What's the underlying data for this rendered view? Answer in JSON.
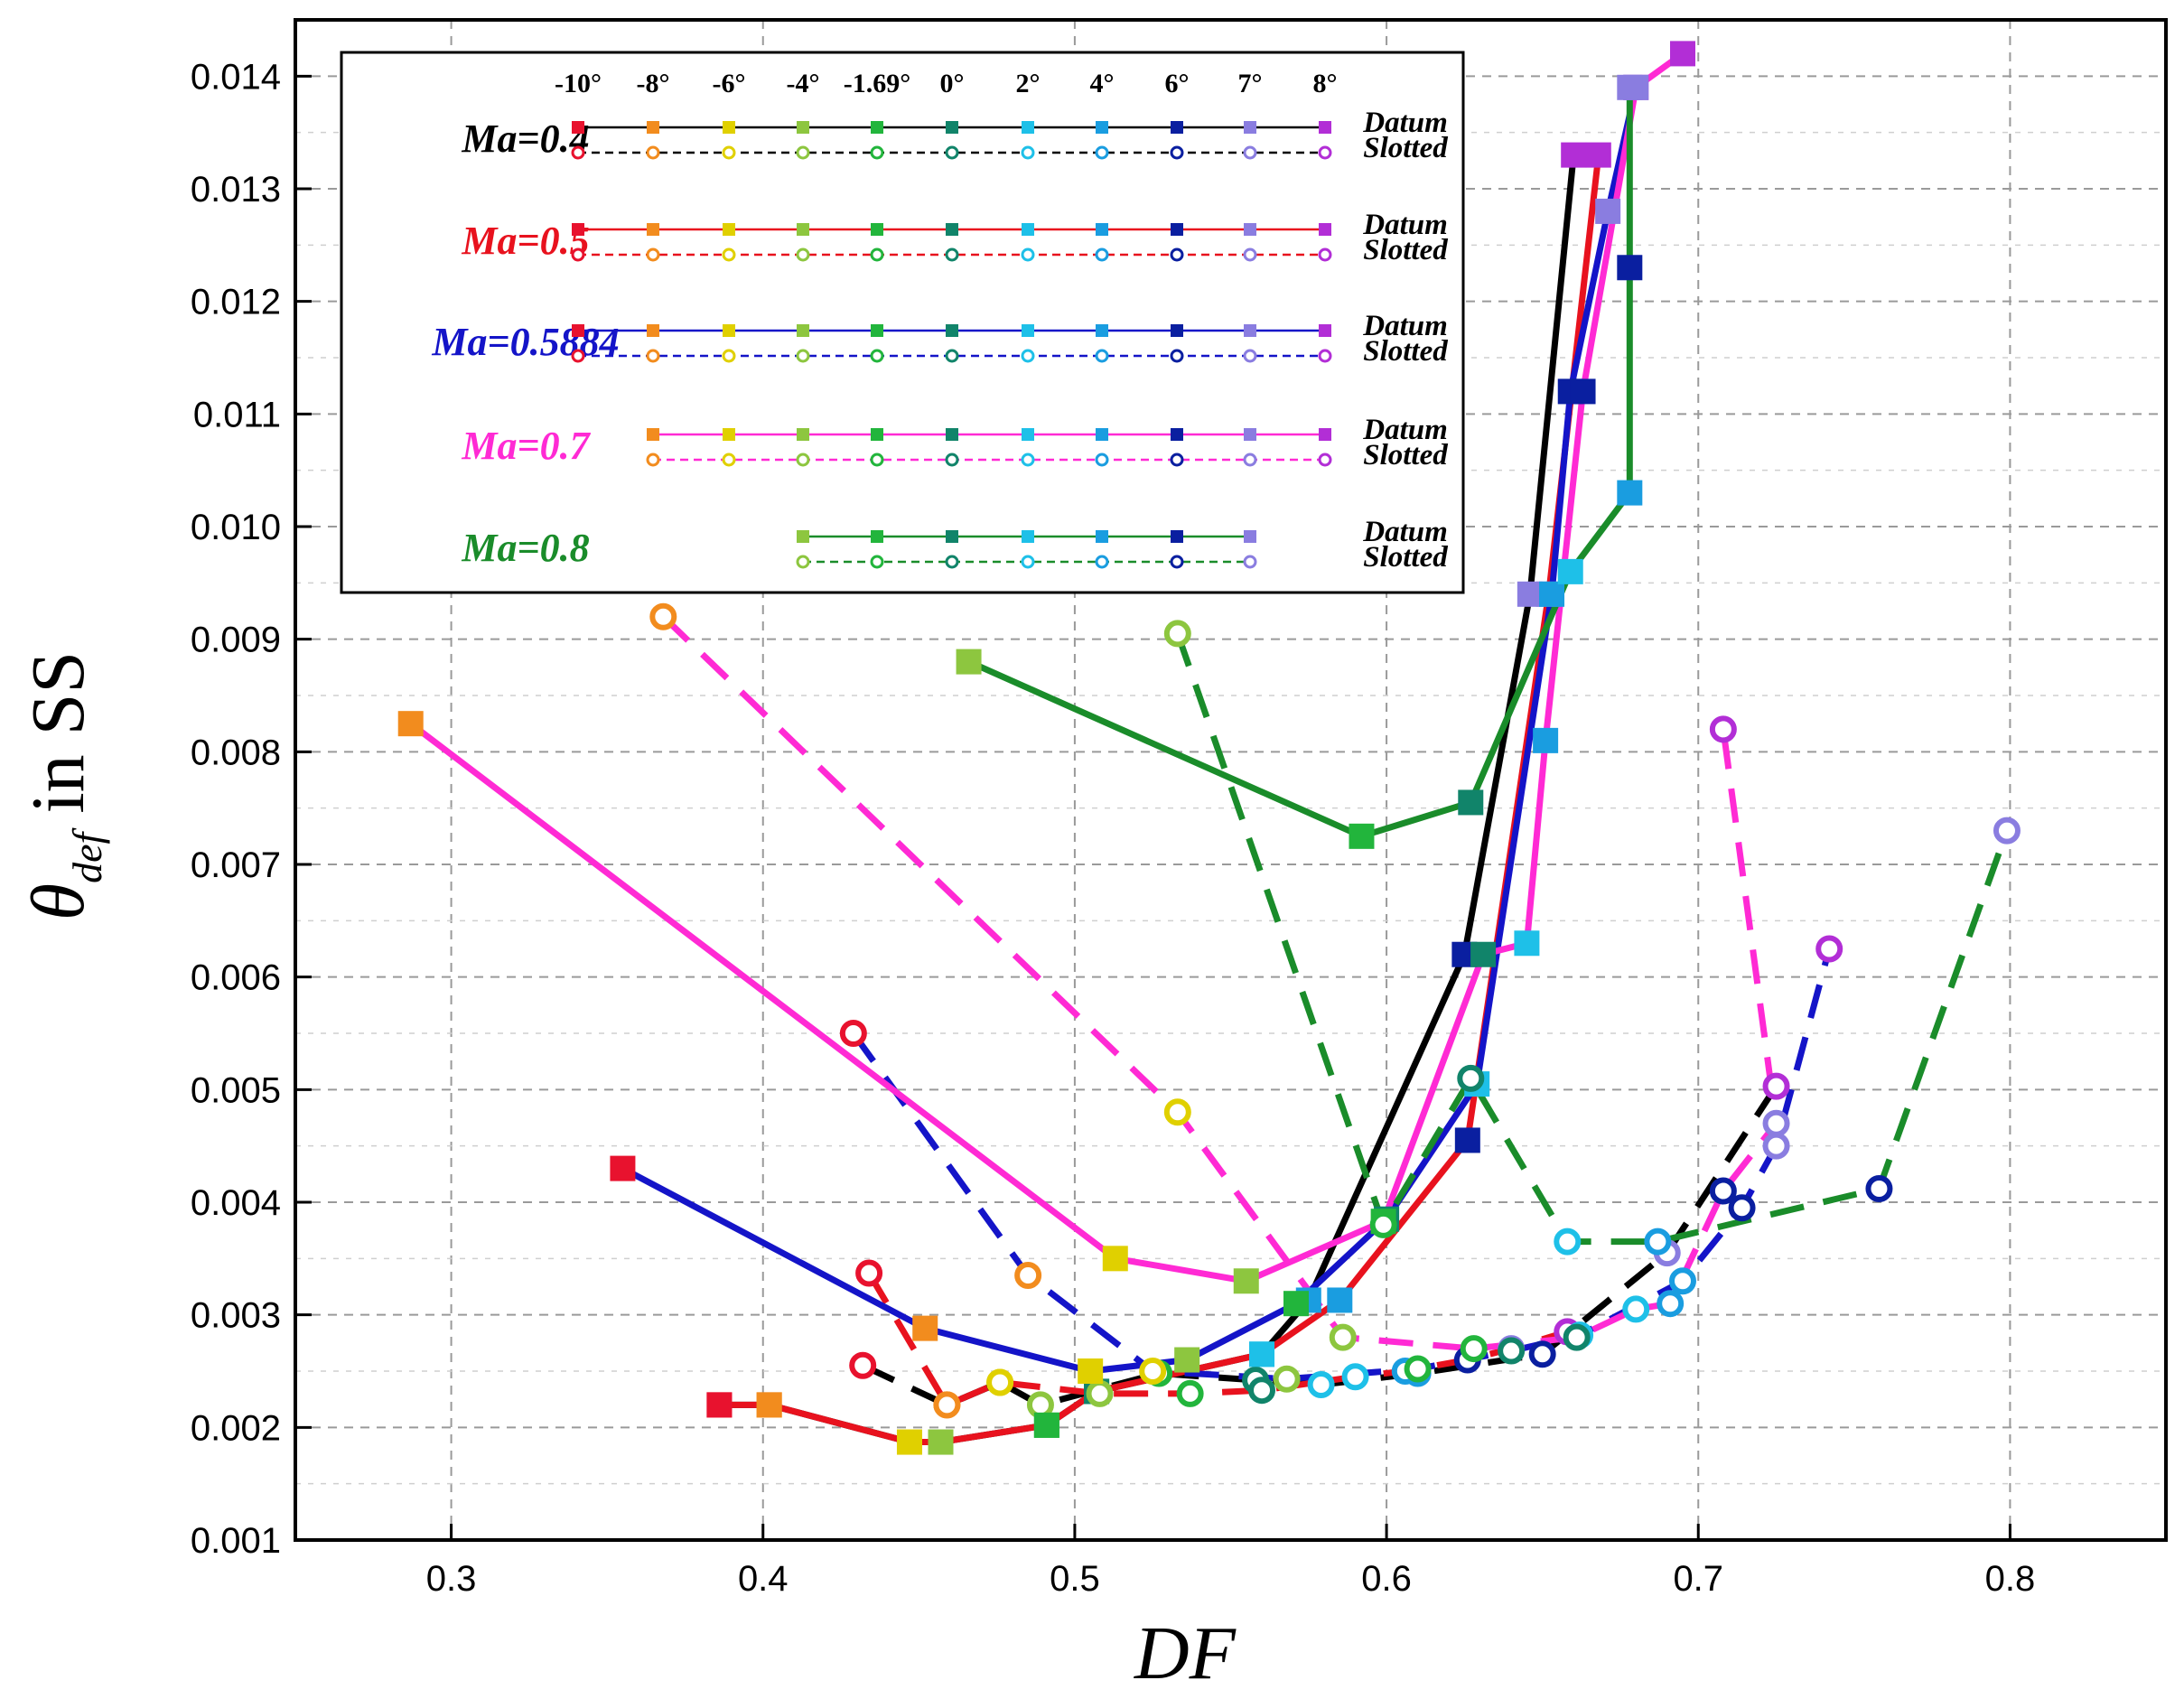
{
  "chart_data": {
    "type": "line",
    "ylabel_symbol": "θ",
    "ylabel_subscript": "def",
    "ylabel_suffix": " in SS",
    "xlabel": "DF",
    "xlim": [
      0.25,
      0.85
    ],
    "ylim": [
      0.001,
      0.0145
    ],
    "x_ticks": [
      0.3,
      0.4,
      0.5,
      0.6,
      0.7,
      0.8
    ],
    "x_tick_labels": [
      "0.3",
      "0.4",
      "0.5",
      "0.6",
      "0.7",
      "0.8"
    ],
    "y_ticks": [
      0.001,
      0.002,
      0.003,
      0.004,
      0.005,
      0.006,
      0.007,
      0.008,
      0.009,
      0.01,
      0.011,
      0.012,
      0.013,
      0.014
    ],
    "y_tick_labels": [
      "0.001",
      "0.002",
      "0.003",
      "0.004",
      "0.005",
      "0.006",
      "0.007",
      "0.008",
      "0.009",
      "0.010",
      "0.011",
      "0.012",
      "0.013",
      "0.014"
    ],
    "grid": true,
    "legend_position": "top-left",
    "angles": [
      "-10°",
      "-8°",
      "-6°",
      "-4°",
      "-1.69°",
      "0°",
      "2°",
      "4°",
      "6°",
      "7°",
      "8°"
    ],
    "angle_colors": [
      "#e8122e",
      "#f28c1e",
      "#e0d000",
      "#8dc63f",
      "#22b53c",
      "#11846a",
      "#1ec0e8",
      "#1a9de0",
      "#0a1fa0",
      "#8a7de0",
      "#b22ed6"
    ],
    "legend_kinds": [
      "Datum",
      "Slotted"
    ],
    "series": [
      {
        "name": "Ma=0.4",
        "color": "#000000",
        "datum": {
          "angle_index": [
            0,
            1,
            2,
            3,
            4,
            5,
            6,
            7,
            8,
            9,
            10
          ],
          "x": [
            0.386,
            0.402,
            0.447,
            0.457,
            0.491,
            0.507,
            0.56,
            0.575,
            0.625,
            0.646,
            0.66
          ],
          "y": [
            0.0022,
            0.0022,
            0.00187,
            0.00187,
            0.00202,
            0.00232,
            0.00265,
            0.00313,
            0.0062,
            0.0094,
            0.0133
          ]
        },
        "slotted": {
          "angle_index": [
            0,
            1,
            2,
            3,
            4,
            5,
            6,
            7,
            8,
            9,
            10
          ],
          "x": [
            0.432,
            0.459,
            0.476,
            0.489,
            0.527,
            0.558,
            0.579,
            0.61,
            0.65,
            0.69,
            0.725
          ],
          "y": [
            0.00255,
            0.0022,
            0.0024,
            0.0022,
            0.00248,
            0.00242,
            0.00238,
            0.00248,
            0.00265,
            0.00355,
            0.00503
          ]
        }
      },
      {
        "name": "Ma=0.5",
        "color": "#e8121e",
        "datum": {
          "angle_index": [
            0,
            1,
            2,
            3,
            4,
            5,
            6,
            7,
            8,
            9,
            10
          ],
          "x": [
            0.386,
            0.402,
            0.447,
            0.457,
            0.491,
            0.507,
            0.56,
            0.585,
            0.626,
            0.652,
            0.668
          ],
          "y": [
            0.0022,
            0.0022,
            0.00187,
            0.00187,
            0.00202,
            0.00232,
            0.00265,
            0.00313,
            0.00455,
            0.0094,
            0.0133
          ]
        },
        "slotted": {
          "angle_index": [
            0,
            1,
            2,
            3,
            4,
            5,
            6,
            7,
            8,
            9,
            10
          ],
          "x": [
            0.434,
            0.459,
            0.476,
            0.508,
            0.537,
            0.56,
            0.59,
            0.606,
            0.626,
            0.64,
            0.658
          ],
          "y": [
            0.00337,
            0.0022,
            0.0024,
            0.0023,
            0.0023,
            0.00233,
            0.00245,
            0.0025,
            0.0026,
            0.0027,
            0.00285
          ]
        }
      },
      {
        "name": "Ma=0.5884",
        "color": "#1414c8",
        "datum": {
          "angle_index": [
            0,
            1,
            2,
            3,
            4,
            5,
            6,
            7,
            8,
            9,
            10
          ],
          "x": [
            0.355,
            0.452,
            0.505,
            0.536,
            0.571,
            0.6,
            0.629,
            0.653,
            0.659,
            0.671,
            0.68
          ],
          "y": [
            0.0043,
            0.00288,
            0.0025,
            0.0026,
            0.0031,
            0.00385,
            0.00505,
            0.0094,
            0.0112,
            0.0128,
            0.0139
          ]
        },
        "slotted": {
          "angle_index": [
            0,
            1,
            2,
            3,
            4,
            5,
            6,
            7,
            8,
            9,
            10
          ],
          "x": [
            0.429,
            0.485,
            0.525,
            0.568,
            0.61,
            0.64,
            0.662,
            0.695,
            0.714,
            0.725,
            0.742
          ],
          "y": [
            0.0055,
            0.00335,
            0.0025,
            0.00243,
            0.00252,
            0.00268,
            0.00282,
            0.0033,
            0.00395,
            0.0045,
            0.00625
          ]
        }
      },
      {
        "name": "Ma=0.7",
        "color": "#ff2ad4",
        "datum": {
          "angle_index": [
            1,
            2,
            3,
            4,
            5,
            6,
            7,
            8,
            9,
            10
          ],
          "x": [
            0.287,
            0.513,
            0.555,
            0.599,
            0.631,
            0.645,
            0.651,
            0.663,
            0.68,
            0.695
          ],
          "y": [
            0.00825,
            0.0035,
            0.0033,
            0.00383,
            0.0062,
            0.0063,
            0.0081,
            0.0112,
            0.0139,
            0.0142
          ]
        },
        "slotted": {
          "angle_index": [
            1,
            2,
            3,
            4,
            5,
            6,
            7,
            8,
            9,
            10
          ],
          "x": [
            0.368,
            0.533,
            0.586,
            0.628,
            0.661,
            0.68,
            0.691,
            0.708,
            0.725,
            0.708
          ],
          "y": [
            0.0092,
            0.0048,
            0.0028,
            0.0027,
            0.0028,
            0.00305,
            0.0031,
            0.0041,
            0.0047,
            0.0082
          ]
        }
      },
      {
        "name": "Ma=0.8",
        "color": "#1a8c2a",
        "datum": {
          "angle_index": [
            3,
            4,
            5,
            6,
            7,
            8,
            9
          ],
          "x": [
            0.466,
            0.592,
            0.627,
            0.659,
            0.678,
            0.678,
            0.678
          ],
          "y": [
            0.0088,
            0.00725,
            0.00755,
            0.0096,
            0.0103,
            0.0123,
            0.0139
          ]
        },
        "slotted": {
          "angle_index": [
            3,
            4,
            5,
            6,
            7,
            8,
            9
          ],
          "x": [
            0.533,
            0.599,
            0.627,
            0.658,
            0.687,
            0.758,
            0.799
          ],
          "y": [
            0.00905,
            0.0038,
            0.0051,
            0.00365,
            0.00365,
            0.00412,
            0.0073
          ]
        }
      }
    ]
  }
}
